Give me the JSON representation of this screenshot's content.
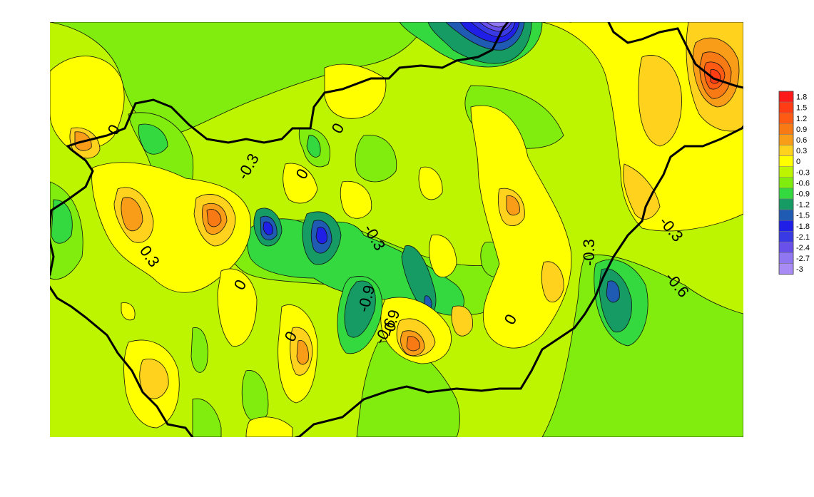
{
  "chart_data": {
    "type": "heatmap",
    "title": "",
    "xlabel": "",
    "ylabel": "",
    "colorbar": {
      "orientation": "vertical",
      "position": "right",
      "levels": [
        {
          "value": "1.8",
          "color": "#ff1a1a"
        },
        {
          "value": "1.5",
          "color": "#ff3c14"
        },
        {
          "value": "1.2",
          "color": "#ff5a14"
        },
        {
          "value": "0.9",
          "color": "#f77a14"
        },
        {
          "value": "0.6",
          "color": "#f99d19"
        },
        {
          "value": "0.3",
          "color": "#ffd21e"
        },
        {
          "value": "0",
          "color": "#ffff00"
        },
        {
          "value": "-0.3",
          "color": "#bdf500"
        },
        {
          "value": "-0.6",
          "color": "#80ed0e"
        },
        {
          "value": "-0.9",
          "color": "#34d93f"
        },
        {
          "value": "-1.2",
          "color": "#159b63"
        },
        {
          "value": "-1.5",
          "color": "#1f5bb3"
        },
        {
          "value": "-1.8",
          "color": "#1f1fe8"
        },
        {
          "value": "-2.1",
          "color": "#3a3ae5"
        },
        {
          "value": "-2.4",
          "color": "#6a50ea"
        },
        {
          "value": "-2.7",
          "color": "#9076f0"
        },
        {
          "value": "-3",
          "color": "#a98bf5"
        }
      ]
    },
    "contour_labels": [
      "0",
      "0",
      "0",
      "0",
      "0",
      "0",
      "-0.3",
      "-0.3",
      "-0.3",
      "-0.3",
      "0.3",
      "-0.6",
      "-0.6",
      "-0.9",
      "-0.9"
    ]
  }
}
